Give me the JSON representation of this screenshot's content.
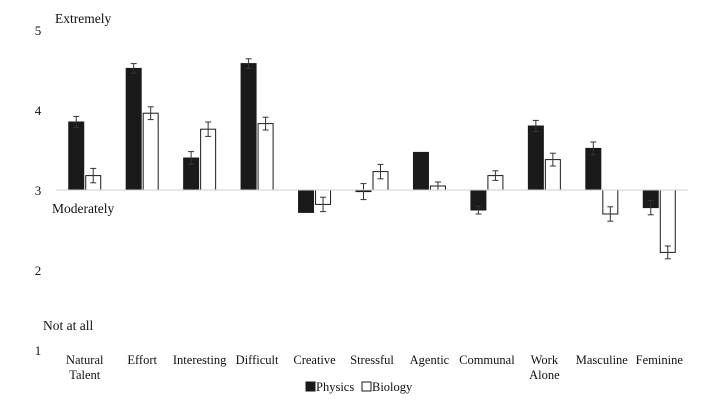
{
  "chart_data": {
    "type": "bar",
    "title": "",
    "xlabel": "",
    "ylabel": "",
    "ylim": [
      1,
      5
    ],
    "baseline": 3,
    "yticks": [
      "1",
      "2",
      "3",
      "4",
      "5"
    ],
    "annotations": [
      {
        "label": "Extremely",
        "value": 5
      },
      {
        "label": "Moderately",
        "value": 3
      },
      {
        "label": "Not at all",
        "value": 1
      }
    ],
    "categories": [
      [
        "Natural",
        "Talent"
      ],
      [
        "Effort"
      ],
      [
        "Interesting"
      ],
      [
        "Difficult"
      ],
      [
        "Creative"
      ],
      [
        "Stressful"
      ],
      [
        "Agentic"
      ],
      [
        "Communal"
      ],
      [
        "Work",
        "Alone"
      ],
      [
        "Masculine"
      ],
      [
        "Feminine"
      ]
    ],
    "series": [
      {
        "name": "Physics",
        "color": "#1a1a1a",
        "values": [
          3.85,
          4.52,
          3.4,
          4.58,
          2.72,
          2.98,
          3.47,
          2.75,
          3.8,
          3.52,
          2.78
        ],
        "errors": [
          0.07,
          0.06,
          0.08,
          0.06,
          0.0,
          0.1,
          0.0,
          0.05,
          0.07,
          0.08,
          0.09
        ]
      },
      {
        "name": "Biology",
        "color": "#ffffff",
        "values": [
          3.18,
          3.96,
          3.76,
          3.83,
          2.82,
          3.23,
          3.05,
          3.18,
          3.38,
          2.7,
          2.22
        ],
        "errors": [
          0.09,
          0.08,
          0.09,
          0.08,
          0.09,
          0.09,
          0.05,
          0.06,
          0.08,
          0.09,
          0.08
        ]
      }
    ],
    "legend": {
      "position": "bottom-center",
      "entries": [
        "Physics",
        "Biology"
      ]
    }
  }
}
